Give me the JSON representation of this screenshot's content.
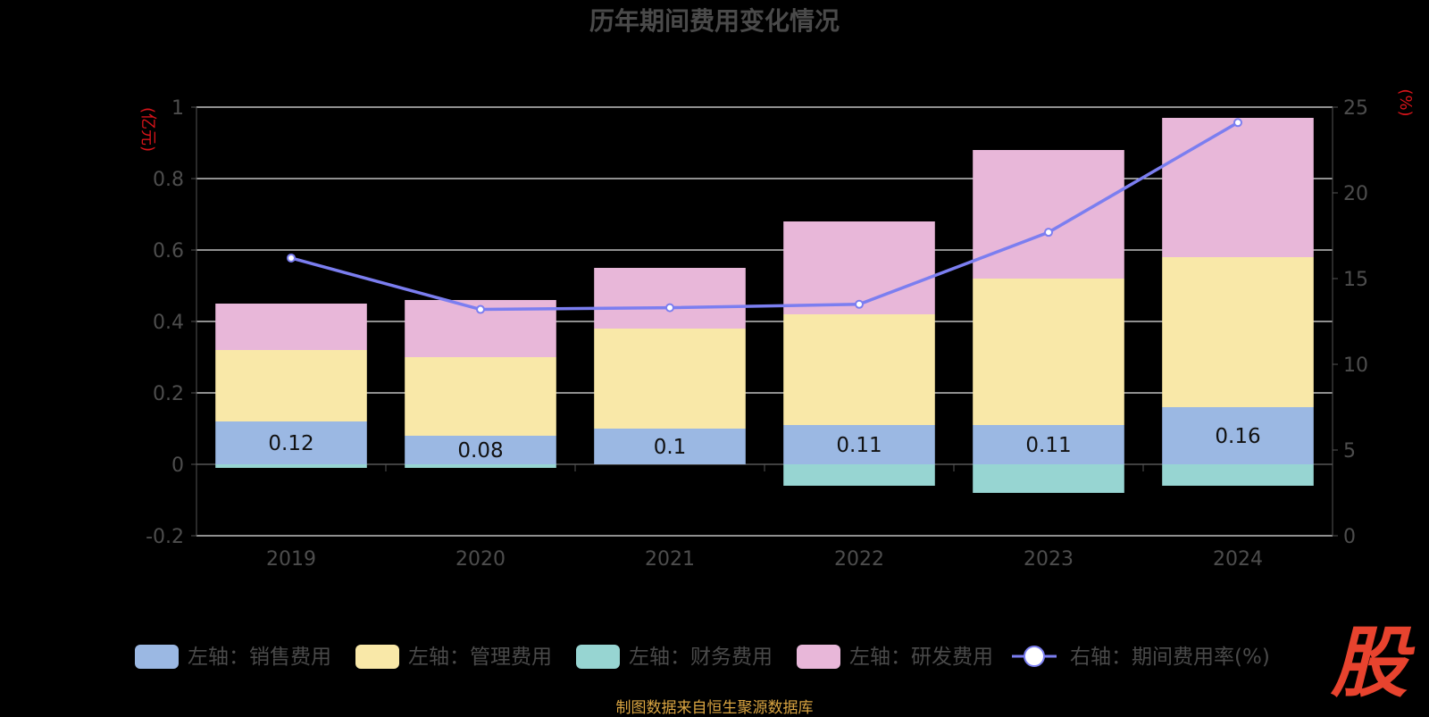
{
  "chart_data": {
    "type": "bar",
    "title": "历年期间费用变化情况",
    "categories": [
      "2019",
      "2020",
      "2021",
      "2022",
      "2023",
      "2024"
    ],
    "left_axis": {
      "unit_label": "(亿元)",
      "ylim": [
        -0.2,
        1.0
      ],
      "ticks": [
        "-0.2",
        "0",
        "0.2",
        "0.4",
        "0.6",
        "0.8",
        "1"
      ]
    },
    "right_axis": {
      "unit_label": "(%)",
      "ylim": [
        0,
        25
      ],
      "ticks": [
        "0",
        "5",
        "10",
        "15",
        "20",
        "25"
      ]
    },
    "stacked": true,
    "series": [
      {
        "name": "左轴：销售费用",
        "type": "bar",
        "axis": "left",
        "color": "#9bb8e3",
        "values": [
          0.12,
          0.08,
          0.1,
          0.11,
          0.11,
          0.16
        ],
        "labels": [
          "0.12",
          "0.08",
          "0.1",
          "0.11",
          "0.11",
          "0.16"
        ]
      },
      {
        "name": "左轴：管理费用",
        "type": "bar",
        "axis": "left",
        "color": "#f9e8a8",
        "values": [
          0.2,
          0.22,
          0.28,
          0.31,
          0.41,
          0.42
        ]
      },
      {
        "name": "左轴：财务费用",
        "type": "bar",
        "axis": "left",
        "color": "#97d5d2",
        "values": [
          -0.01,
          -0.01,
          0.0,
          -0.06,
          -0.08,
          -0.06
        ]
      },
      {
        "name": "左轴：研发费用",
        "type": "bar",
        "axis": "left",
        "color": "#e8b7d9",
        "values": [
          0.13,
          0.16,
          0.17,
          0.26,
          0.36,
          0.39
        ]
      },
      {
        "name": "右轴：期间费用率(%)",
        "type": "line",
        "axis": "right",
        "color": "#7b7ef0",
        "values": [
          16.2,
          13.2,
          13.3,
          13.5,
          17.7,
          24.1
        ]
      }
    ],
    "grid": true,
    "legend_position": "bottom"
  },
  "footer": {
    "source": "制图数据来自恒生聚源数据库",
    "logo_text": "股"
  }
}
